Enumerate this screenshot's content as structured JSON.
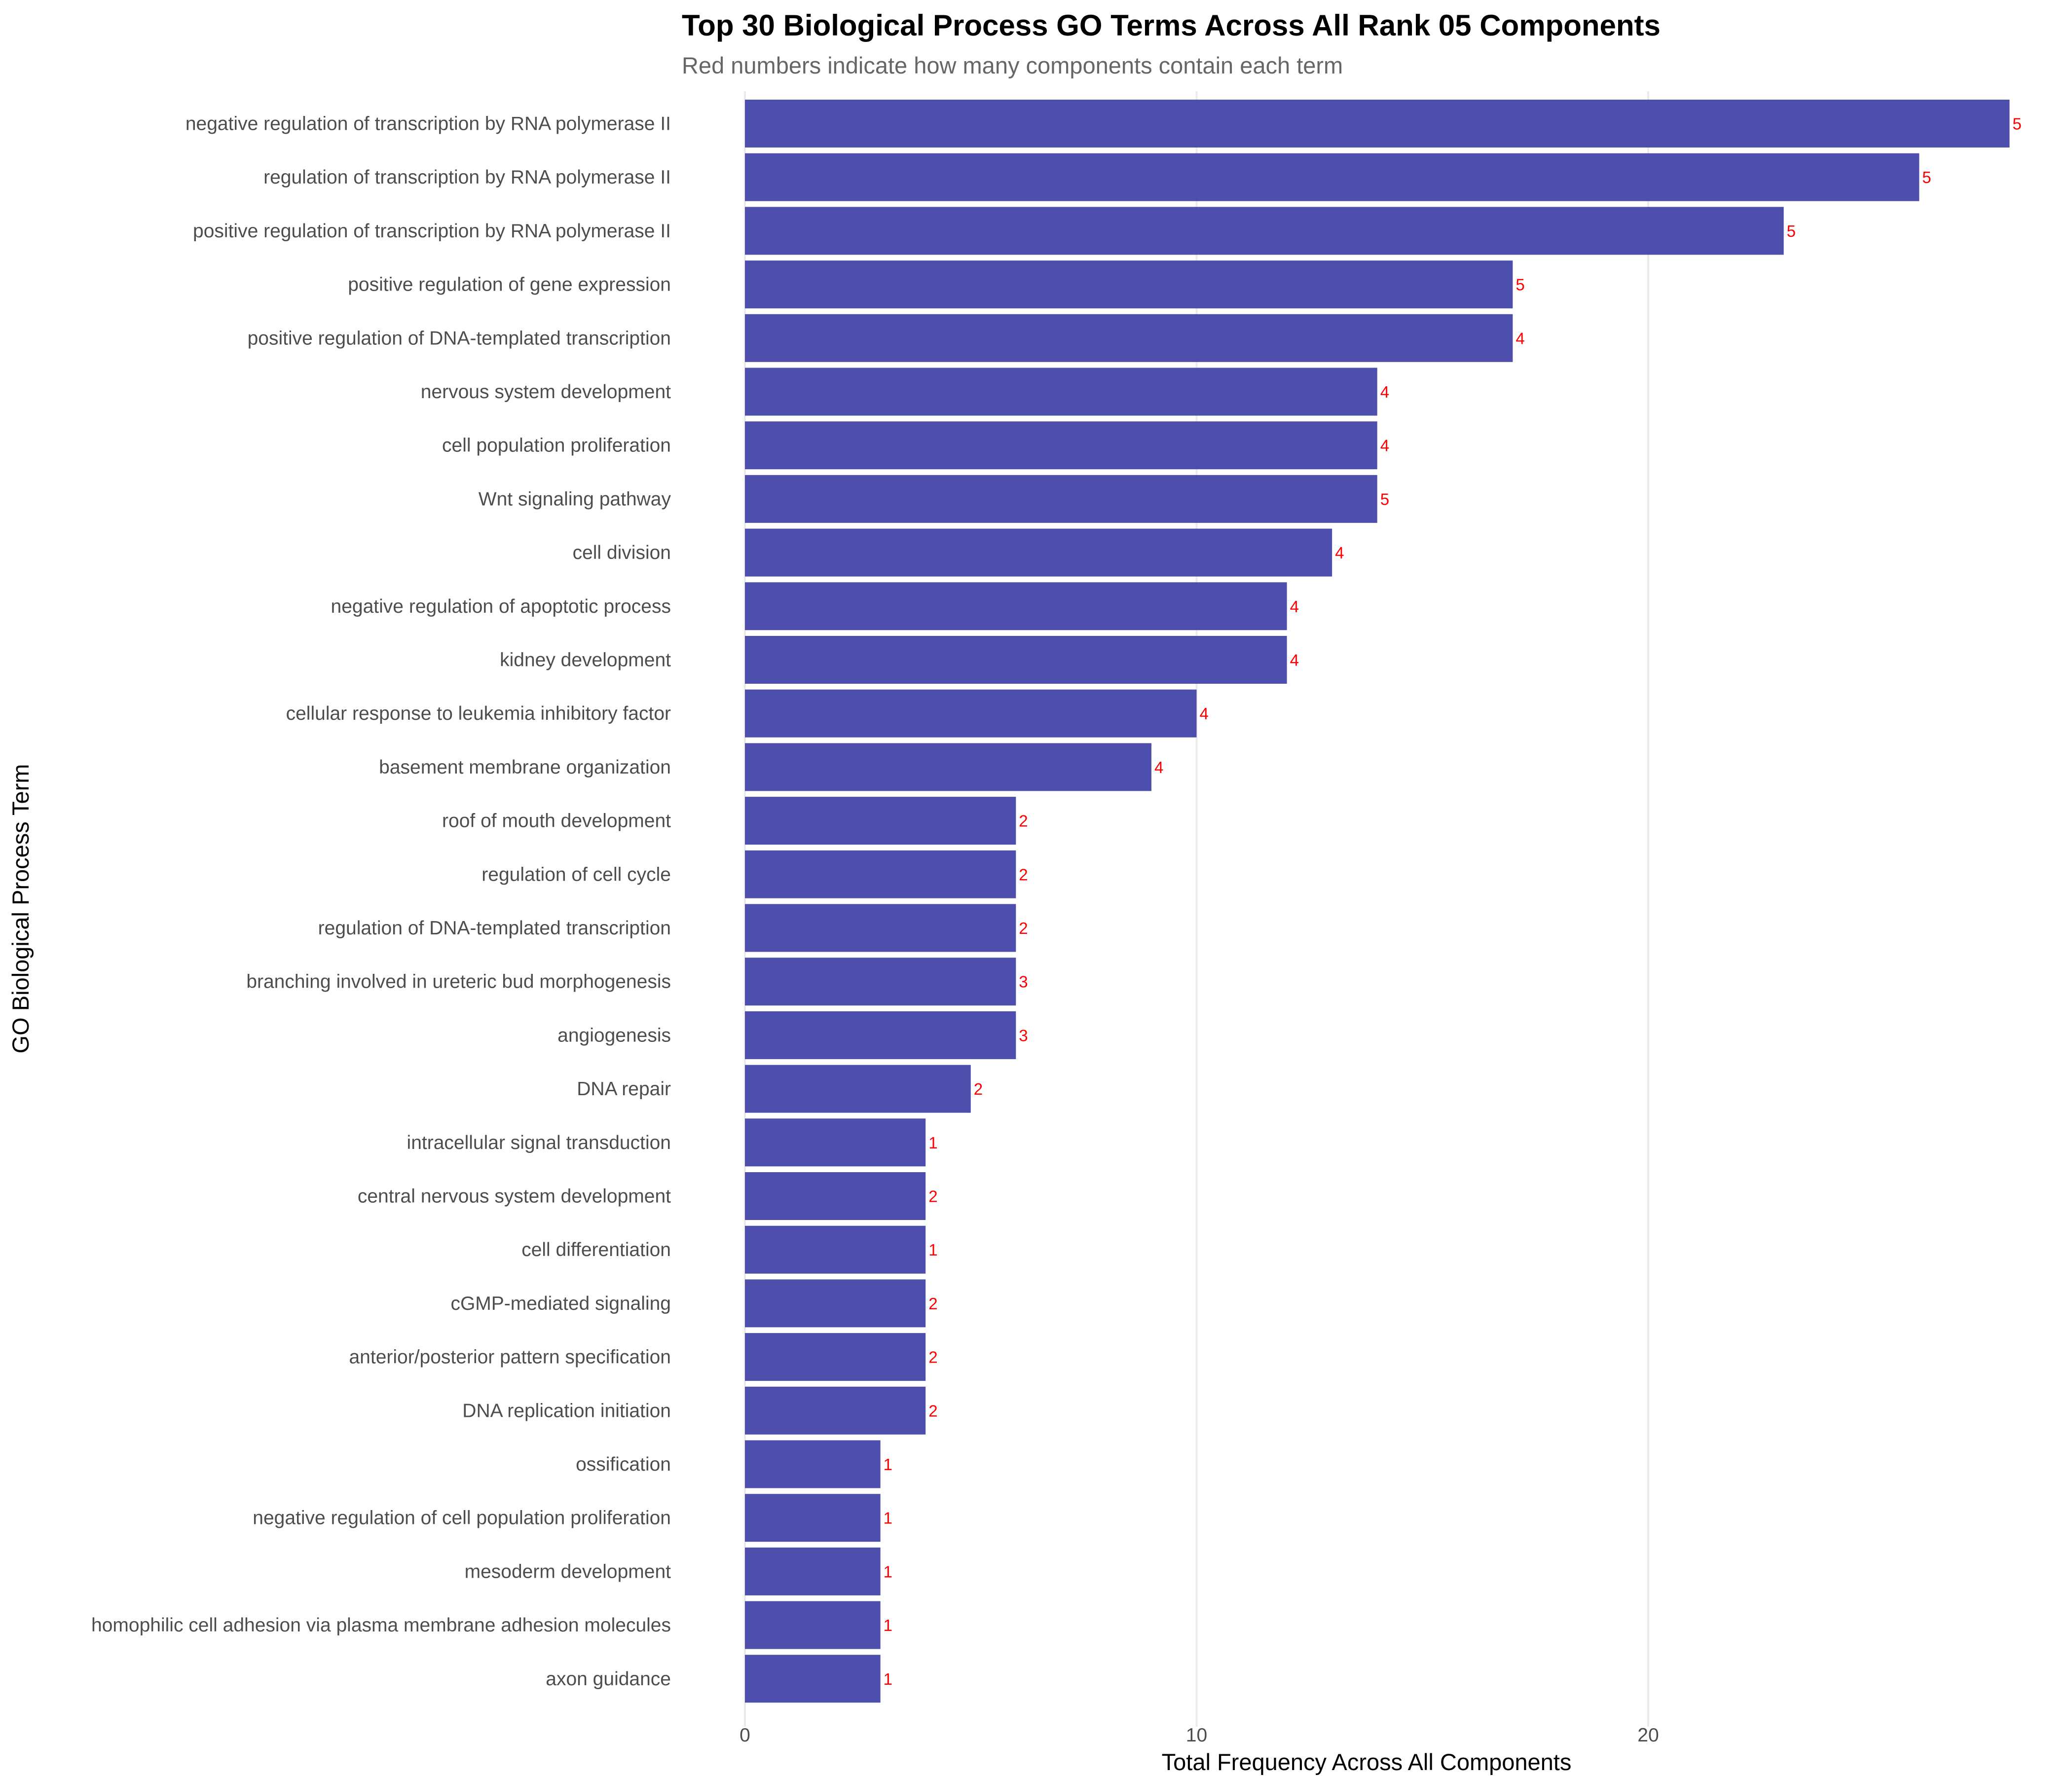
{
  "chart_data": {
    "type": "bar",
    "orientation": "horizontal",
    "title": "Top 30 Biological Process GO Terms Across All Rank 05 Components",
    "subtitle": "Red numbers indicate how many components contain each term",
    "xlabel": "Total Frequency Across All Components",
    "ylabel": "GO Biological Process Term",
    "xlim": [
      0,
      28
    ],
    "xticks": [
      0,
      10,
      20
    ],
    "xtick_labels": [
      "0",
      "10",
      "20"
    ],
    "grid": true,
    "bar_color": "#3F3FA6",
    "label_color": "#FF0000",
    "categories": [
      "negative regulation of transcription by RNA polymerase II",
      "regulation of transcription by RNA polymerase II",
      "positive regulation of transcription by RNA polymerase II",
      "positive regulation of gene expression",
      "positive regulation of DNA-templated transcription",
      "nervous system development",
      "cell population proliferation",
      "Wnt signaling pathway",
      "cell division",
      "negative regulation of apoptotic process",
      "kidney development",
      "cellular response to leukemia inhibitory factor",
      "basement membrane organization",
      "roof of mouth development",
      "regulation of cell cycle",
      "regulation of DNA-templated transcription",
      "branching involved in ureteric bud morphogenesis",
      "angiogenesis",
      "DNA repair",
      "intracellular signal transduction",
      "central nervous system development",
      "cell differentiation",
      "cGMP-mediated signaling",
      "anterior/posterior pattern specification",
      "DNA replication initiation",
      "ossification",
      "negative regulation of cell population proliferation",
      "mesoderm development",
      "homophilic cell adhesion via plasma membrane adhesion molecules",
      "axon guidance"
    ],
    "values": [
      28,
      26,
      23,
      17,
      17,
      14,
      14,
      14,
      13,
      12,
      12,
      10,
      9,
      6,
      6,
      6,
      6,
      6,
      5,
      4,
      4,
      4,
      4,
      4,
      4,
      3,
      3,
      3,
      3,
      3
    ],
    "component_counts": [
      "5",
      "5",
      "5",
      "5",
      "4",
      "4",
      "4",
      "5",
      "4",
      "4",
      "4",
      "4",
      "4",
      "2",
      "2",
      "2",
      "3",
      "3",
      "2",
      "1",
      "2",
      "1",
      "2",
      "2",
      "2",
      "1",
      "1",
      "1",
      "1",
      "1"
    ]
  }
}
